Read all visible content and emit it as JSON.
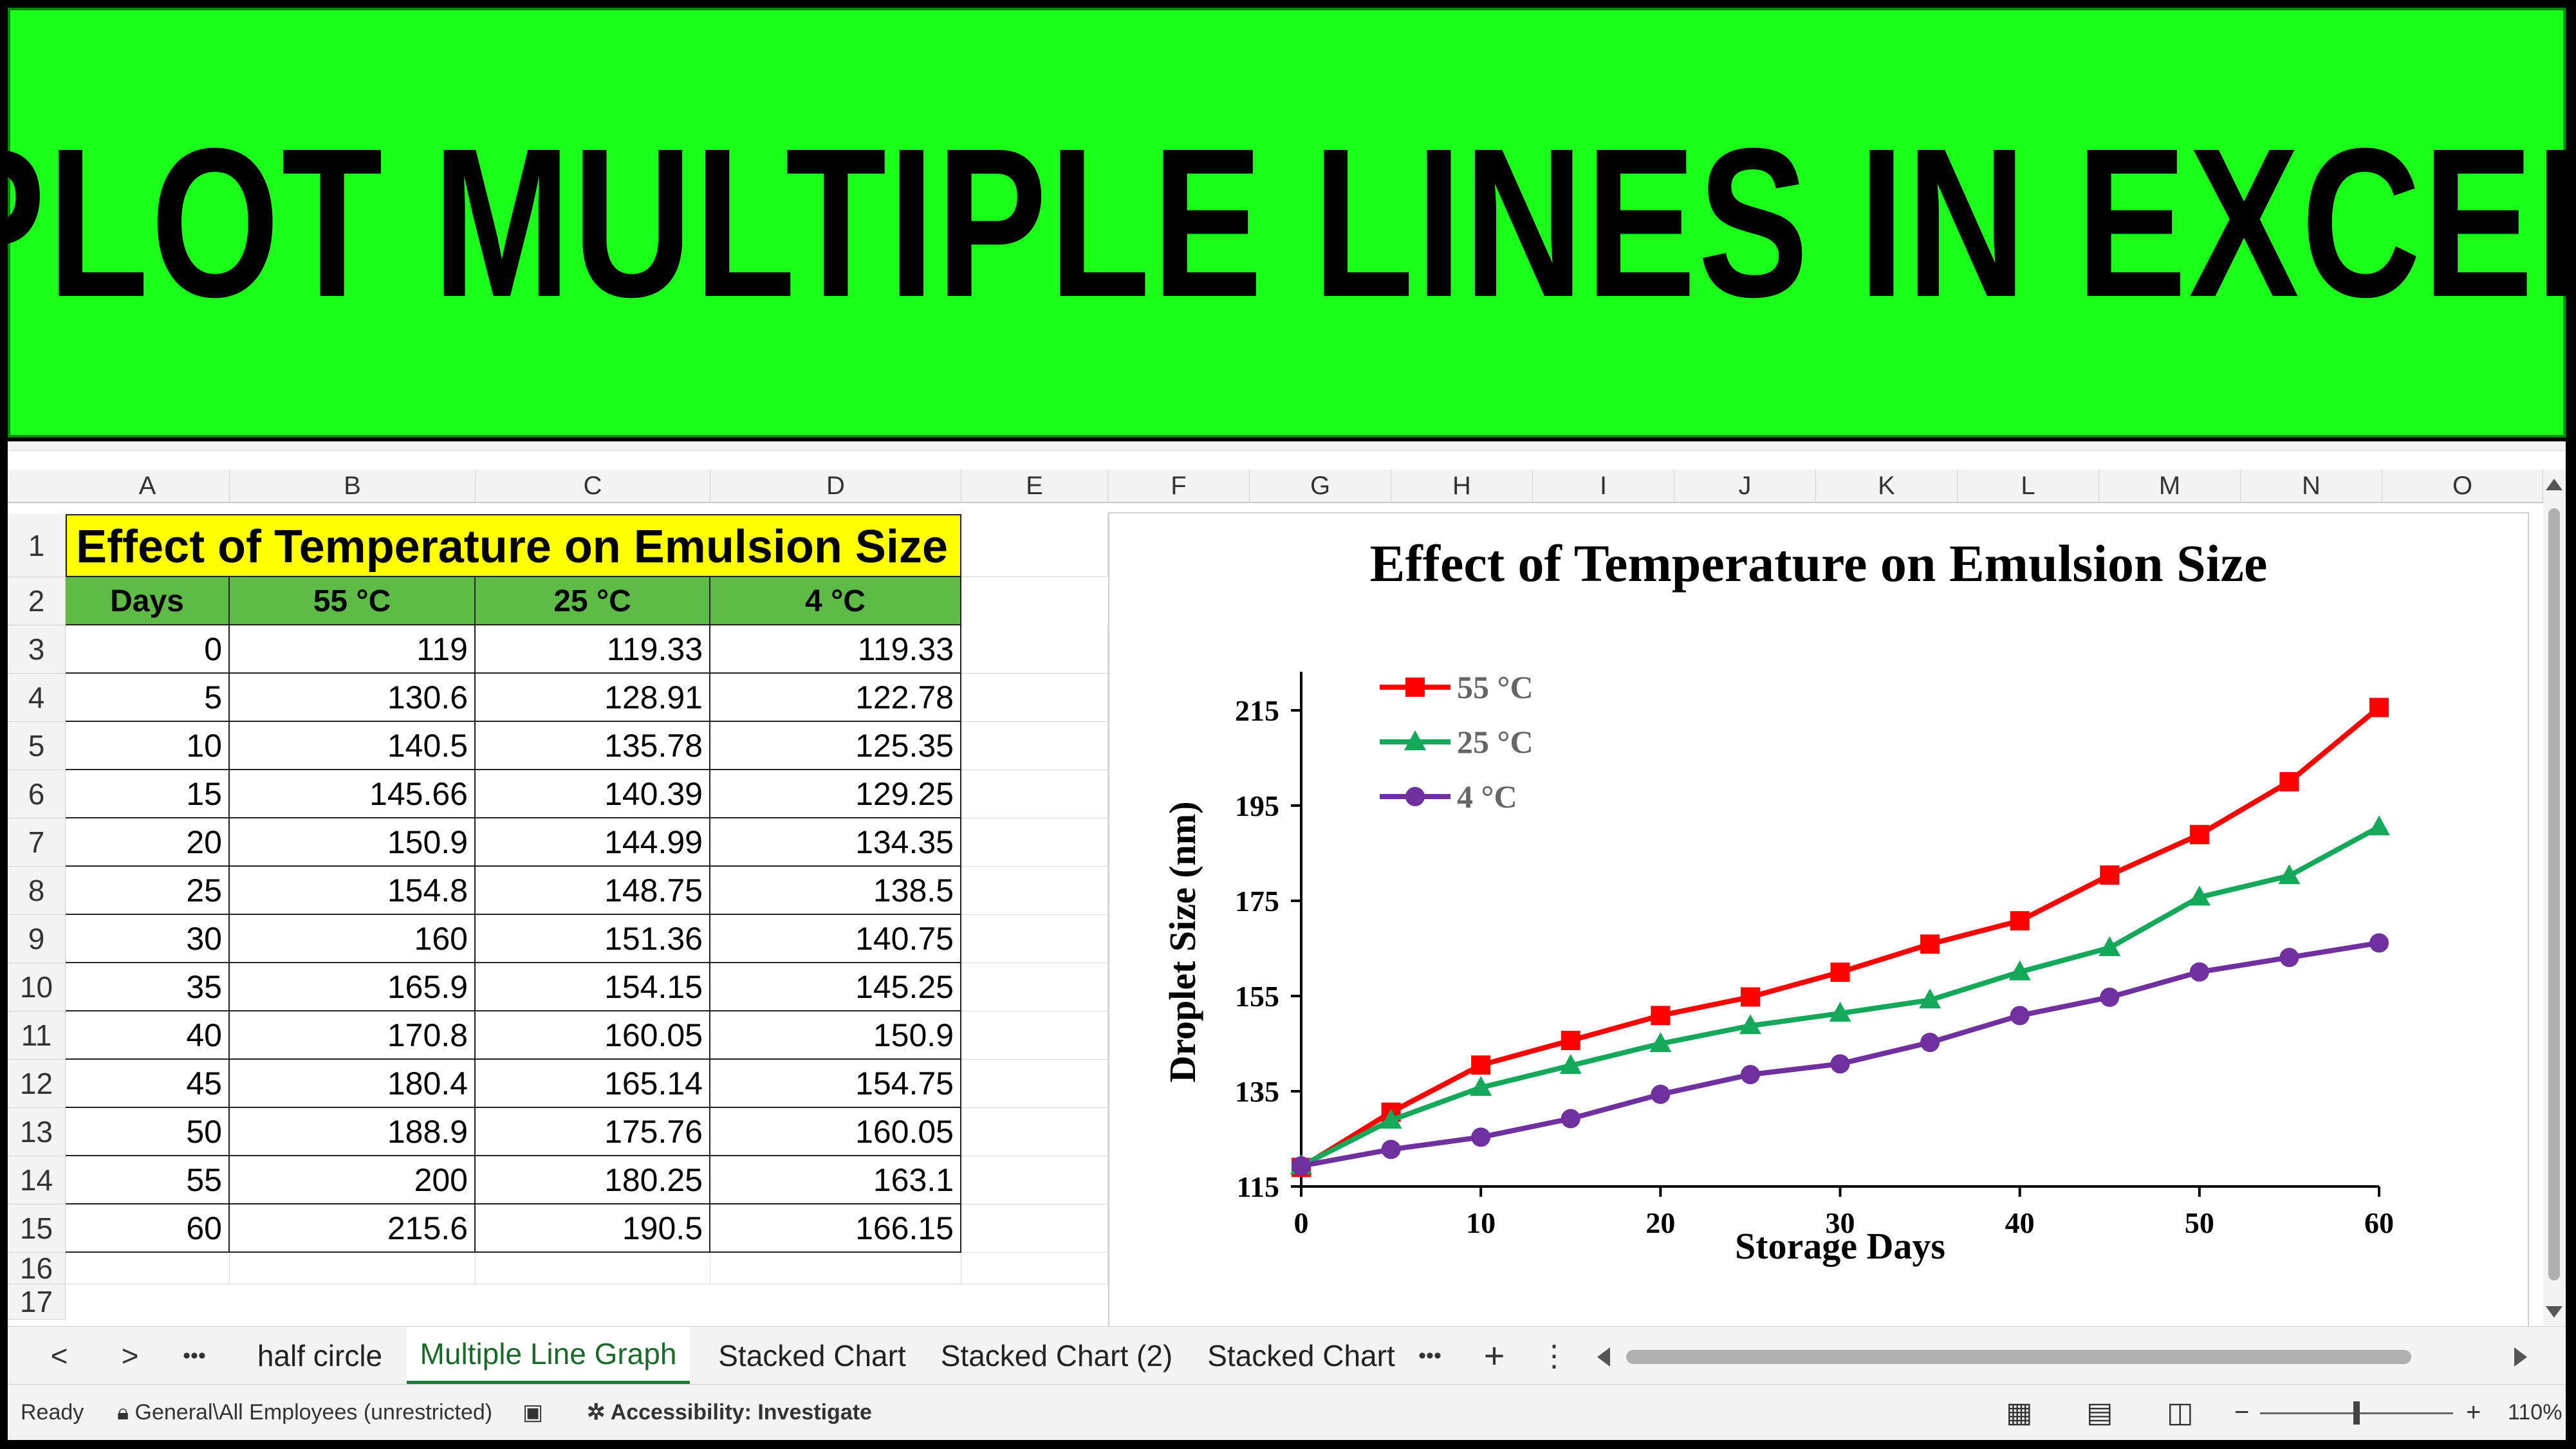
{
  "banner": {
    "title": "PLOT MULTIPLE LINES IN EXCEL",
    "bg": "#19ff19"
  },
  "sheet": {
    "columns": [
      "A",
      "B",
      "C",
      "D",
      "E",
      "F",
      "G",
      "H",
      "I",
      "J",
      "K",
      "L",
      "M",
      "N",
      "O"
    ],
    "rows": [
      "1",
      "2",
      "3",
      "4",
      "5",
      "6",
      "7",
      "8",
      "9",
      "10",
      "11",
      "12",
      "13",
      "14",
      "15",
      "16",
      "17"
    ],
    "title": "Effect of Temperature on Emulsion Size",
    "headers": [
      "Days",
      "55 °C",
      "25 °C",
      "4 °C"
    ],
    "data": [
      [
        "0",
        "119",
        "119.33",
        "119.33"
      ],
      [
        "5",
        "130.6",
        "128.91",
        "122.78"
      ],
      [
        "10",
        "140.5",
        "135.78",
        "125.35"
      ],
      [
        "15",
        "145.66",
        "140.39",
        "129.25"
      ],
      [
        "20",
        "150.9",
        "144.99",
        "134.35"
      ],
      [
        "25",
        "154.8",
        "148.75",
        "138.5"
      ],
      [
        "30",
        "160",
        "151.36",
        "140.75"
      ],
      [
        "35",
        "165.9",
        "154.15",
        "145.25"
      ],
      [
        "40",
        "170.8",
        "160.05",
        "150.9"
      ],
      [
        "45",
        "180.4",
        "165.14",
        "154.75"
      ],
      [
        "50",
        "188.9",
        "175.76",
        "160.05"
      ],
      [
        "55",
        "200",
        "180.25",
        "163.1"
      ],
      [
        "60",
        "215.6",
        "190.5",
        "166.15"
      ]
    ]
  },
  "chart_data": {
    "type": "line",
    "title": "Effect of Temperature on Emulsion Size",
    "xlabel": "Storage Days",
    "ylabel": "Droplet Size (nm)",
    "x": [
      0,
      5,
      10,
      15,
      20,
      25,
      30,
      35,
      40,
      45,
      50,
      55,
      60
    ],
    "xticks": [
      0,
      10,
      20,
      30,
      40,
      50,
      60
    ],
    "yticks": [
      115,
      135,
      155,
      175,
      195,
      215
    ],
    "xlim": [
      0,
      60
    ],
    "ylim": [
      115,
      220
    ],
    "legend_position": "top-left",
    "grid": false,
    "series": [
      {
        "name": "55 °C",
        "color": "#ff0000",
        "marker": "square",
        "values": [
          119,
          130.6,
          140.5,
          145.66,
          150.9,
          154.8,
          160,
          165.9,
          170.8,
          180.4,
          188.9,
          200,
          215.6
        ]
      },
      {
        "name": "25 °C",
        "color": "#13a85a",
        "marker": "triangle",
        "values": [
          119.33,
          128.91,
          135.78,
          140.39,
          144.99,
          148.75,
          151.36,
          154.15,
          160.05,
          165.14,
          175.76,
          180.25,
          190.5
        ]
      },
      {
        "name": "4 °C",
        "color": "#7030a0",
        "marker": "circle",
        "values": [
          119.33,
          122.78,
          125.35,
          129.25,
          134.35,
          138.5,
          140.75,
          145.25,
          150.9,
          154.75,
          160.05,
          163.1,
          166.15
        ]
      }
    ]
  },
  "tabs": {
    "prev": "<",
    "next": ">",
    "more": "•••",
    "items": [
      "half circle",
      "Multiple Line Graph",
      "Stacked Chart",
      "Stacked Chart (2)",
      "Stacked Chart"
    ],
    "active_index": 1,
    "more2": "•••",
    "add": "+",
    "menu": "⋮"
  },
  "status": {
    "ready": "Ready",
    "sensitivity": "General\\All Employees (unrestricted)",
    "accessibility": "Accessibility: Investigate",
    "zoom": "110%",
    "zoom_minus": "−",
    "zoom_plus": "+"
  }
}
